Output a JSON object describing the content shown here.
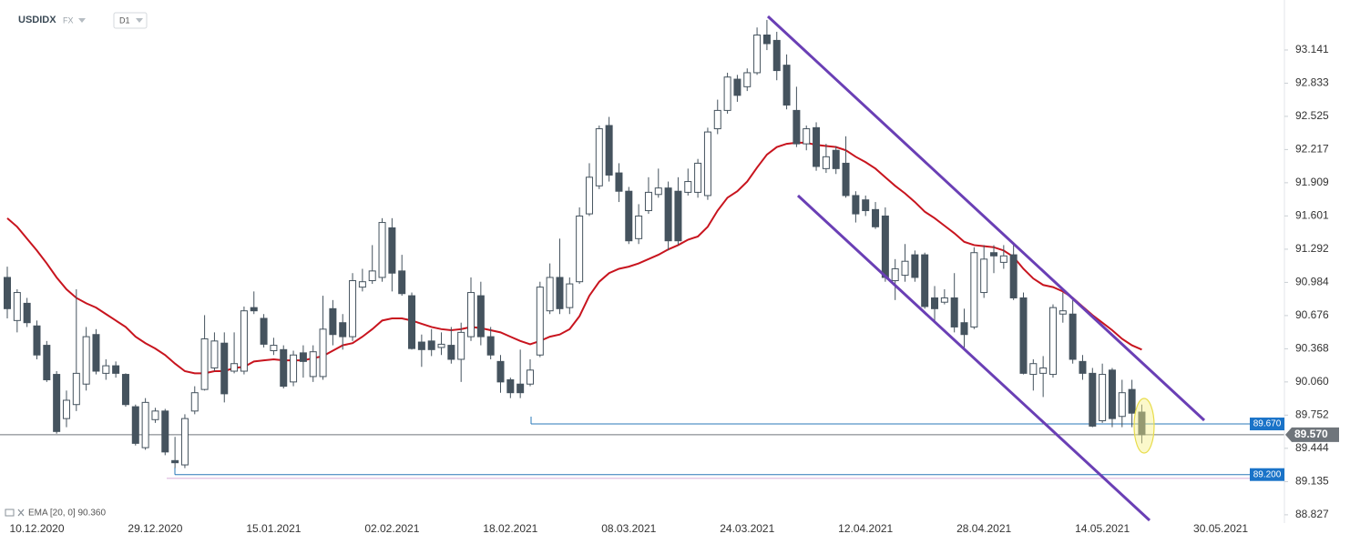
{
  "chart_data": {
    "type": "candlestick",
    "title": "USDIDX",
    "market": "FX",
    "timeframe": "D1",
    "categories": [
      null,
      null,
      null,
      "10.12.2020",
      null,
      null,
      null,
      null,
      null,
      null,
      null,
      null,
      null,
      null,
      null,
      "29.12.2020",
      null,
      null,
      null,
      null,
      null,
      null,
      null,
      null,
      null,
      null,
      null,
      "15.01.2021",
      null,
      null,
      null,
      null,
      null,
      null,
      null,
      null,
      null,
      null,
      null,
      "02.02.2021",
      null,
      null,
      null,
      null,
      null,
      null,
      null,
      null,
      null,
      null,
      null,
      "18.02.2021",
      null,
      null,
      null,
      null,
      null,
      null,
      null,
      null,
      null,
      null,
      null,
      "08.03.2021",
      null,
      null,
      null,
      null,
      null,
      null,
      null,
      null,
      null,
      null,
      null,
      "24.03.2021",
      null,
      null,
      null,
      null,
      null,
      null,
      null,
      null,
      null,
      null,
      null,
      "12.04.2021",
      null,
      null,
      null,
      null,
      null,
      null,
      null,
      null,
      null,
      null,
      null,
      "28.04.2021",
      null,
      null,
      null,
      null,
      null,
      null,
      null,
      null,
      null,
      null,
      null,
      "14.05.2021",
      null,
      null,
      null,
      null
    ],
    "extra_x_labels": [
      "30.05.2021"
    ],
    "open": [
      91.03,
      90.63,
      90.79,
      90.58,
      90.4,
      90.13,
      89.72,
      89.85,
      90.04,
      90.5,
      90.14,
      90.21,
      90.13,
      89.83,
      89.45,
      89.71,
      89.79,
      89.33,
      89.29,
      89.79,
      89.99,
      90.19,
      90.42,
      90.16,
      90.16,
      90.75,
      90.65,
      90.35,
      90.36,
      90.06,
      90.33,
      90.11,
      90.11,
      90.74,
      90.61,
      90.48,
      90.94,
      91.0,
      91.03,
      91.49,
      91.09,
      90.86,
      90.43,
      90.44,
      90.38,
      90.4,
      90.27,
      90.48,
      90.86,
      90.48,
      90.25,
      90.08,
      90.04,
      90.04,
      90.31,
      90.72,
      91.03,
      90.75,
      90.99,
      91.62,
      91.88,
      92.44,
      92.0,
      91.83,
      91.39,
      91.65,
      91.8,
      91.86,
      91.83,
      91.82,
      91.82,
      91.79,
      92.41,
      92.58,
      92.87,
      92.8,
      92.93,
      93.28,
      93.23,
      93.0,
      92.58,
      92.27,
      92.42,
      92.04,
      92.21,
      92.09,
      91.79,
      91.75,
      91.66,
      91.6,
      91.0,
      91.05,
      91.24,
      91.24,
      90.84,
      90.8,
      90.84,
      90.61,
      90.57,
      90.89,
      91.26,
      91.17,
      91.24,
      90.84,
      90.13,
      90.14,
      90.13,
      90.69,
      90.69,
      90.25,
      90.14,
      89.7,
      90.17,
      89.74,
      89.99,
      89.78
    ],
    "high": [
      91.13,
      90.92,
      90.84,
      90.63,
      90.44,
      90.16,
      89.98,
      90.92,
      90.57,
      90.55,
      90.27,
      90.25,
      90.14,
      89.85,
      89.91,
      89.82,
      89.81,
      89.55,
      89.76,
      90.02,
      90.68,
      90.52,
      90.52,
      90.52,
      90.76,
      90.9,
      90.69,
      90.47,
      90.4,
      90.35,
      90.4,
      90.4,
      90.86,
      90.82,
      90.69,
      91.07,
      91.11,
      91.33,
      91.58,
      91.58,
      91.24,
      90.89,
      90.5,
      90.55,
      90.52,
      90.57,
      90.61,
      91.03,
      90.99,
      90.57,
      90.31,
      90.1,
      90.36,
      90.27,
      90.99,
      91.16,
      91.39,
      91.03,
      91.68,
      92.09,
      92.44,
      92.52,
      92.09,
      91.87,
      91.71,
      91.96,
      92.04,
      91.92,
      91.96,
      92.04,
      92.13,
      92.42,
      92.68,
      92.93,
      92.91,
      92.97,
      93.35,
      93.42,
      93.31,
      93.1,
      92.8,
      92.44,
      92.47,
      92.27,
      92.25,
      92.34,
      91.83,
      91.79,
      91.73,
      91.68,
      91.2,
      91.34,
      91.28,
      91.26,
      90.95,
      90.92,
      91.07,
      90.74,
      91.31,
      91.33,
      91.33,
      91.33,
      91.34,
      90.89,
      90.27,
      90.3,
      90.78,
      90.89,
      90.82,
      90.31,
      90.19,
      90.23,
      90.19,
      90.08,
      90.08,
      89.85
    ],
    "low": [
      90.65,
      90.52,
      90.57,
      90.27,
      90.06,
      89.58,
      89.64,
      89.79,
      89.98,
      90.13,
      90.08,
      90.1,
      89.83,
      89.47,
      89.43,
      89.68,
      89.38,
      89.26,
      89.26,
      89.76,
      89.98,
      90.16,
      89.87,
      90.14,
      90.13,
      90.69,
      90.38,
      90.31,
      90.0,
      90.02,
      90.1,
      90.06,
      90.08,
      90.4,
      90.36,
      90.44,
      90.9,
      90.97,
      90.99,
      90.9,
      90.86,
      90.36,
      90.2,
      90.3,
      90.31,
      90.23,
      90.06,
      90.44,
      90.4,
      90.27,
      89.96,
      89.91,
      89.91,
      90.02,
      90.29,
      90.69,
      90.69,
      90.69,
      90.97,
      91.6,
      91.85,
      91.92,
      91.73,
      91.34,
      91.34,
      91.62,
      91.77,
      91.28,
      91.33,
      91.79,
      91.77,
      91.75,
      92.36,
      92.55,
      92.66,
      92.76,
      92.91,
      93.14,
      92.86,
      92.59,
      92.24,
      92.21,
      92.02,
      92.0,
      91.99,
      91.77,
      91.54,
      91.6,
      91.48,
      90.99,
      90.82,
      90.99,
      90.99,
      90.74,
      90.61,
      90.78,
      90.52,
      90.36,
      90.55,
      90.84,
      91.07,
      91.11,
      90.82,
      90.13,
      89.98,
      89.92,
      90.1,
      90.61,
      90.23,
      90.08,
      89.64,
      89.68,
      89.64,
      89.64,
      89.64,
      89.49
    ],
    "close": [
      90.74,
      90.89,
      90.61,
      90.31,
      90.08,
      89.6,
      89.89,
      90.14,
      90.48,
      90.16,
      90.21,
      90.14,
      89.85,
      89.49,
      89.87,
      89.79,
      89.41,
      89.31,
      89.72,
      89.96,
      90.46,
      90.44,
      89.95,
      90.23,
      90.72,
      90.72,
      90.41,
      90.4,
      90.02,
      90.31,
      90.25,
      90.34,
      90.55,
      90.5,
      90.48,
      91.0,
      90.99,
      91.09,
      91.54,
      91.07,
      90.88,
      90.37,
      90.36,
      90.36,
      90.41,
      90.27,
      90.52,
      90.89,
      90.48,
      90.31,
      90.06,
      89.96,
      89.96,
      90.17,
      90.94,
      91.03,
      90.74,
      90.97,
      91.6,
      91.96,
      92.41,
      91.98,
      91.83,
      91.37,
      91.6,
      91.82,
      91.86,
      91.37,
      91.37,
      91.92,
      92.09,
      92.38,
      92.58,
      92.89,
      92.72,
      92.93,
      93.28,
      93.2,
      92.95,
      92.63,
      92.27,
      92.41,
      92.06,
      92.15,
      92.04,
      91.79,
      91.62,
      91.65,
      91.5,
      91.03,
      91.11,
      91.18,
      91.03,
      90.76,
      90.74,
      90.84,
      90.57,
      90.5,
      91.26,
      91.2,
      91.23,
      91.23,
      90.84,
      90.14,
      90.23,
      90.19,
      90.75,
      90.72,
      90.27,
      90.14,
      89.65,
      90.13,
      89.72,
      89.96,
      89.77,
      89.57
    ],
    "up_color": "#ffffff",
    "down_color": "#45535e",
    "series": [
      {
        "name": "EMA [20, 0] 90.360",
        "color": "#c8141e",
        "values": [
          91.58,
          91.5,
          91.39,
          91.28,
          91.16,
          91.03,
          90.92,
          90.84,
          90.79,
          90.75,
          90.69,
          90.63,
          90.57,
          90.48,
          90.42,
          90.37,
          90.31,
          90.23,
          90.16,
          90.14,
          90.14,
          90.16,
          90.16,
          90.19,
          90.2,
          90.25,
          90.26,
          90.27,
          90.26,
          90.26,
          90.26,
          90.28,
          90.3,
          90.35,
          90.4,
          90.42,
          90.48,
          90.55,
          90.63,
          90.65,
          90.65,
          90.63,
          90.6,
          90.57,
          90.55,
          90.54,
          90.55,
          90.57,
          90.56,
          90.54,
          90.52,
          90.48,
          90.44,
          90.41,
          90.44,
          90.48,
          90.5,
          90.55,
          90.67,
          90.86,
          90.99,
          91.07,
          91.11,
          91.13,
          91.16,
          91.2,
          91.24,
          91.29,
          91.33,
          91.38,
          91.41,
          91.5,
          91.65,
          91.77,
          91.83,
          91.92,
          92.05,
          92.17,
          92.24,
          92.27,
          92.28,
          92.28,
          92.26,
          92.25,
          92.24,
          92.21,
          92.15,
          92.1,
          92.04,
          91.96,
          91.88,
          91.81,
          91.73,
          91.64,
          91.58,
          91.51,
          91.44,
          91.36,
          91.33,
          91.32,
          91.31,
          91.28,
          91.22,
          91.11,
          91.02,
          90.96,
          90.94,
          90.9,
          90.84,
          90.76,
          90.68,
          90.61,
          90.54,
          90.46,
          90.4,
          90.36
        ]
      }
    ],
    "levels": [
      {
        "value": 89.67,
        "label": "89.670",
        "color": "#2a78b8"
      },
      {
        "value": 89.2,
        "label": "89.200",
        "color": "#2a78b8"
      }
    ],
    "current_price": {
      "value": 89.57,
      "label": "89.570",
      "color": "#6f757b"
    },
    "ylim": [
      88.75,
      93.605
    ],
    "yticks": [
      93.141,
      92.833,
      92.525,
      92.217,
      91.909,
      91.601,
      91.292,
      90.984,
      90.676,
      90.368,
      {
        "value": 90.06,
        "label": "90.060"
      },
      89.752,
      89.444,
      89.135,
      88.827
    ]
  }
}
